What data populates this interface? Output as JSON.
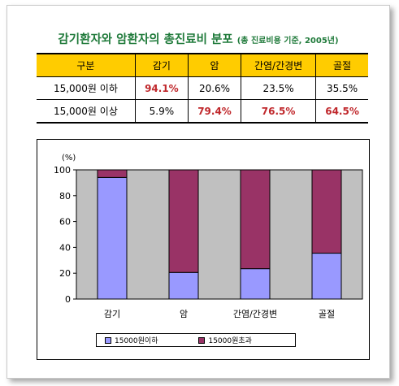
{
  "title": {
    "main": "감기환자와 암환자의 총진료비 분포",
    "sub": "(총 진료비용 기준, 2005년)"
  },
  "table": {
    "header": [
      "구분",
      "감기",
      "암",
      "간염/간경변",
      "골절"
    ],
    "rows": [
      {
        "label": "15,000원 이하",
        "cells": [
          "94.1%",
          "20.6%",
          "23.5%",
          "35.5%"
        ],
        "highlight": [
          true,
          false,
          false,
          false
        ]
      },
      {
        "label": "15,000원 이상",
        "cells": [
          "5.9%",
          "79.4%",
          "76.5%",
          "64.5%"
        ],
        "highlight": [
          false,
          true,
          true,
          true
        ]
      }
    ]
  },
  "colors": {
    "series1": "#9999ff",
    "series2": "#993366",
    "plot_bg": "#c0c0c0",
    "header_bg": "#ffcc00",
    "highlight_text": "#c0282c",
    "title": "#1f7a3a"
  },
  "chart_data": {
    "type": "bar",
    "stacked": true,
    "categories": [
      "감기",
      "암",
      "간염/간경변",
      "골절"
    ],
    "series": [
      {
        "name": "15000원이하",
        "values": [
          94.1,
          20.6,
          23.5,
          35.5
        ]
      },
      {
        "name": "15000원초과",
        "values": [
          5.9,
          79.4,
          76.5,
          64.5
        ]
      }
    ],
    "ylabel": "(%)",
    "ylim": [
      0,
      100
    ],
    "yticks": [
      0,
      20,
      40,
      60,
      80,
      100
    ],
    "legend": "bottom",
    "grid": false
  }
}
